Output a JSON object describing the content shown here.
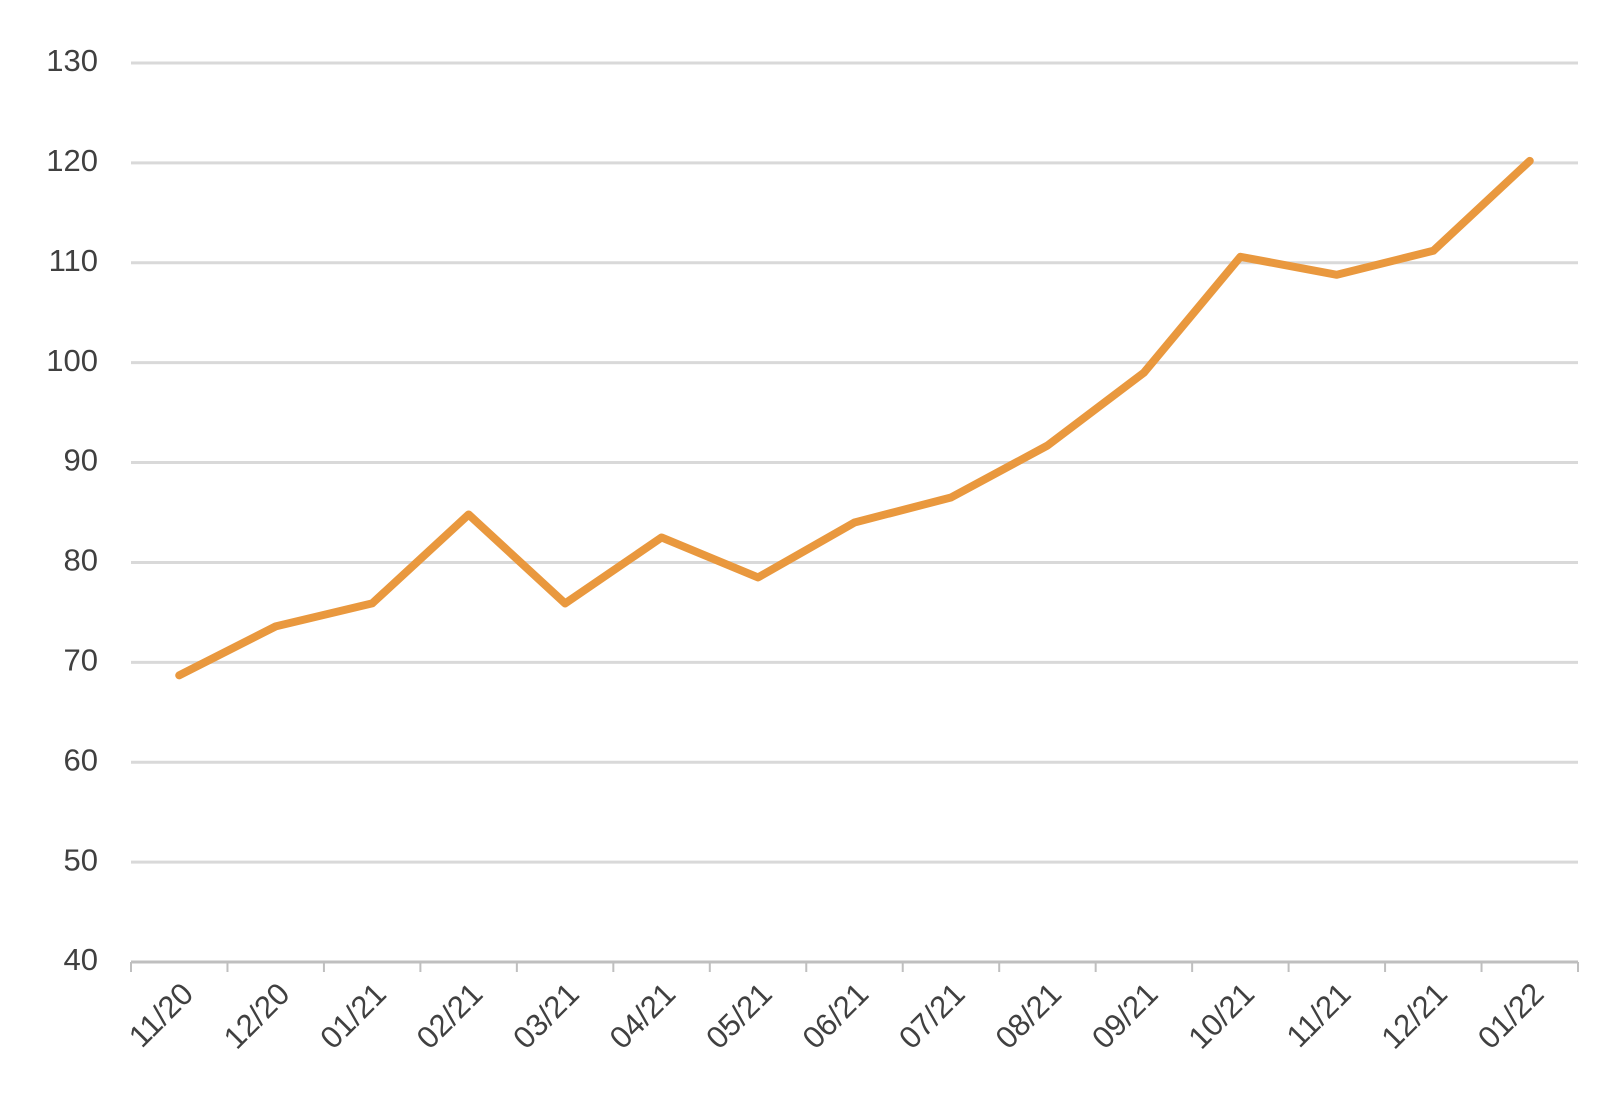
{
  "chart_data": {
    "type": "line",
    "categories": [
      "11/20",
      "12/20",
      "01/21",
      "02/21",
      "03/21",
      "04/21",
      "05/21",
      "06/21",
      "07/21",
      "08/21",
      "09/21",
      "10/21",
      "11/21",
      "12/21",
      "01/22"
    ],
    "values": [
      68.7,
      73.6,
      75.9,
      84.8,
      75.9,
      82.5,
      78.5,
      84,
      86.5,
      91.7,
      99,
      110.6,
      108.8,
      111.2,
      120.2
    ],
    "color": "#e9983e",
    "ylim": [
      40,
      130
    ],
    "yticks": [
      40,
      50,
      60,
      70,
      80,
      90,
      100,
      110,
      120,
      130
    ],
    "grid": true
  }
}
